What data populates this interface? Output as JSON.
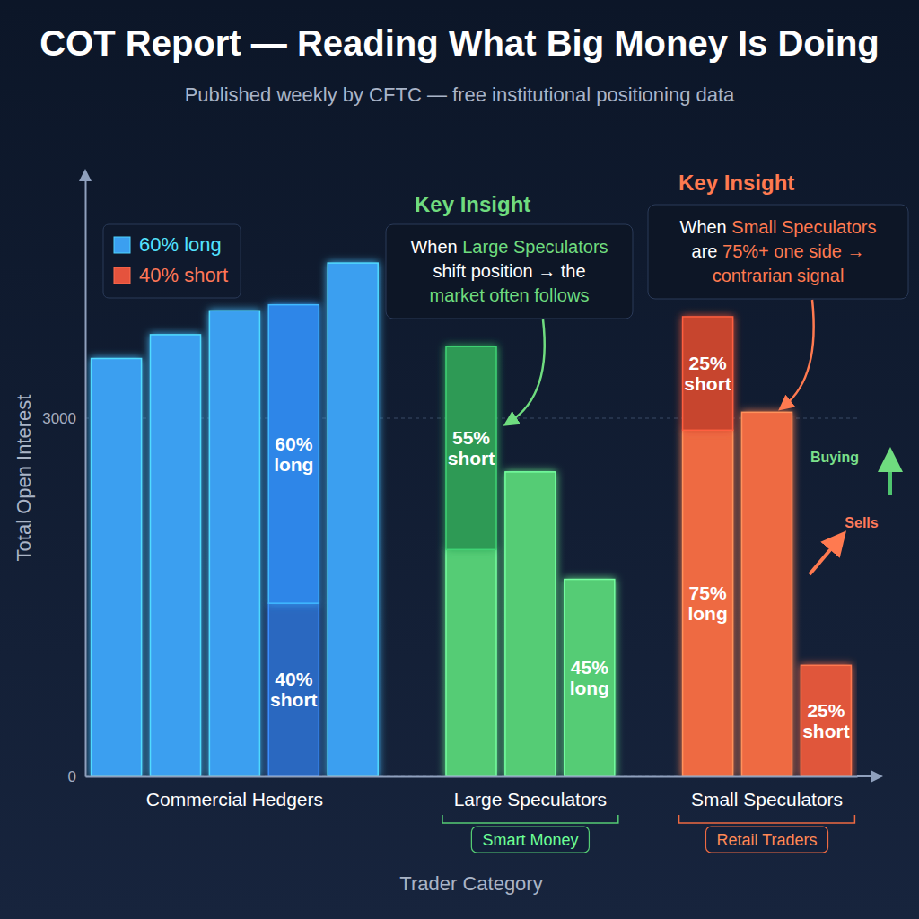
{
  "chart_data": {
    "type": "bar",
    "title": "COT Report — Reading What Big Money Is Doing",
    "subtitle": "Published weekly by CFTC — free institutional positioning data",
    "x_label": "Trader Category",
    "y_label": "Total Open Interest",
    "categories": [
      null,
      null,
      "Commercial Hedgers",
      null,
      null,
      null,
      null,
      "Large Speculators",
      null,
      null,
      null,
      "Small Speculators",
      null
    ],
    "category_tags": [
      null,
      null,
      null,
      null,
      null,
      null,
      null,
      "Smart Money",
      null,
      null,
      null,
      "Retail Traders",
      null
    ],
    "stacked": true,
    "series": [
      {
        "values": [
          3500,
          3700,
          3900,
          1450,
          4300,
          null,
          1900,
          2550,
          1650,
          null,
          2900,
          3050,
          930
        ],
        "colors": [
          "#3b9ff0",
          "#3b9ff0",
          "#3b9ff0",
          "#2a67c0",
          "#3b9ff0",
          null,
          "#55cc74",
          "#55cc74",
          "#55cc74",
          null,
          "#ee6a42",
          "#ee6a42",
          "#e0573a"
        ],
        "bar_labels": [
          null,
          null,
          null,
          "40% short",
          null,
          null,
          null,
          null,
          "45% long",
          null,
          "75% long",
          null,
          "25% short"
        ]
      },
      {
        "values": [
          null,
          null,
          null,
          2500,
          null,
          null,
          1700,
          null,
          null,
          null,
          950,
          null,
          null
        ],
        "colors": [
          null,
          null,
          null,
          "#2f86e8",
          null,
          null,
          "#2e9a55",
          null,
          null,
          null,
          "#c7452e",
          null,
          null
        ],
        "bar_labels": [
          null,
          null,
          null,
          "60% long",
          null,
          null,
          "55% short",
          null,
          null,
          null,
          "25% short",
          null,
          null
        ]
      }
    ],
    "ylim": [
      0,
      5000
    ],
    "yticks": [
      0,
      3000
    ],
    "grid": true,
    "legend": "top-left",
    "legend_items": [
      {
        "label": "60% long",
        "color": "#3b9ff0"
      },
      {
        "label": "40% short",
        "color": "#e5533d"
      }
    ],
    "callouts": [
      {
        "heading": "Key Insight",
        "lines": [
          "When Large Speculators",
          "shift position → the",
          "market often follows"
        ],
        "highlights": [
          "Large Speculators",
          "market often follows"
        ],
        "color": "#6fdc7f"
      },
      {
        "heading": "Key Insight",
        "lines": [
          "When Small Speculators",
          "are 75%+ one side →",
          "contrarian signal"
        ],
        "highlights": [
          "Small Speculators",
          "75%+ one side →",
          "contrarian signal"
        ],
        "color": "#ff7a50"
      }
    ],
    "icon_labels": [
      "Buying",
      "Sells"
    ]
  }
}
